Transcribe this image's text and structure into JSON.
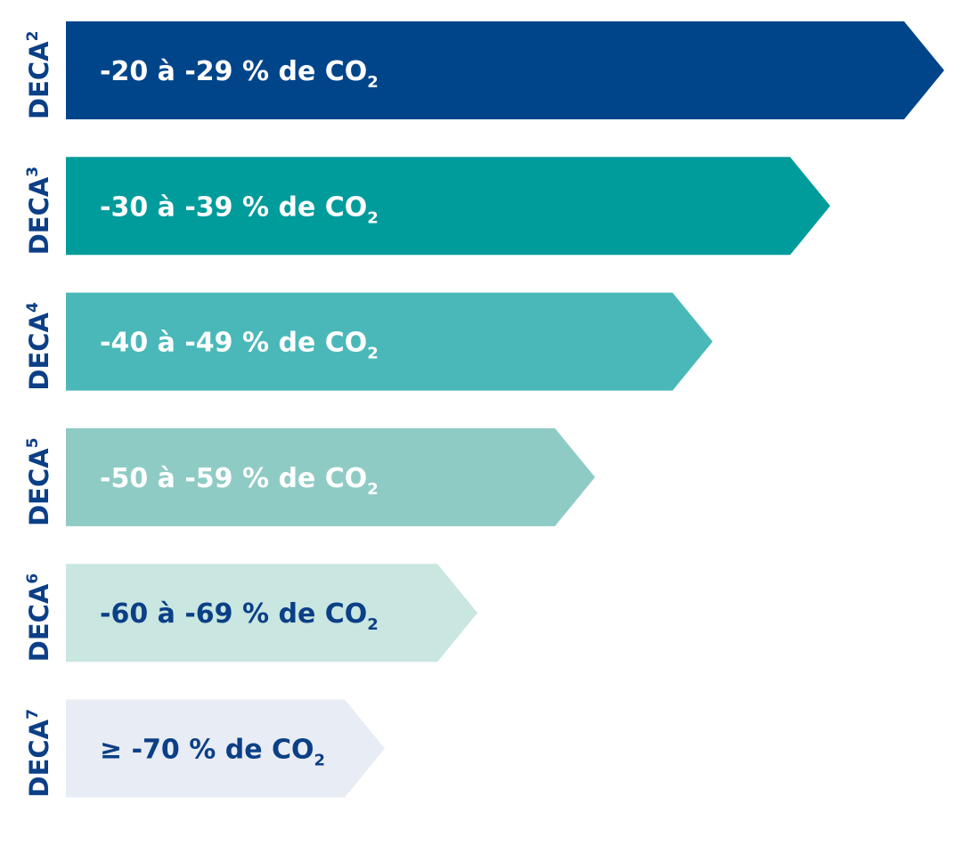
{
  "rows": [
    {
      "label": "DECA",
      "label_sup": "2",
      "text": "-20 à -29 % de CO",
      "text_sub": "2",
      "color": "#00458a",
      "text_color": "#ffffff"
    },
    {
      "label": "DECA",
      "label_sup": "3",
      "text": "-30 à -39 % de CO",
      "text_sub": "2",
      "color": "#009b9b",
      "text_color": "#ffffff"
    },
    {
      "label": "DECA",
      "label_sup": "4",
      "text": "-40 à -49 % de CO",
      "text_sub": "2",
      "color": "#4ab8b9",
      "text_color": "#ffffff"
    },
    {
      "label": "DECA",
      "label_sup": "5",
      "text": "-50 à -59 % de CO",
      "text_sub": "2",
      "color": "#8ecbc4",
      "text_color": "#ffffff"
    },
    {
      "label": "DECA",
      "label_sup": "6",
      "text": "-60 à -69 % de CO",
      "text_sub": "2",
      "color": "#c9e6e1",
      "text_color": "#0b3f86"
    },
    {
      "label": "DECA",
      "label_sup": "7",
      "text": "≥ -70 % de CO",
      "text_sub": "2",
      "color": "#e8ecf4",
      "text_color": "#0b3f86"
    }
  ]
}
